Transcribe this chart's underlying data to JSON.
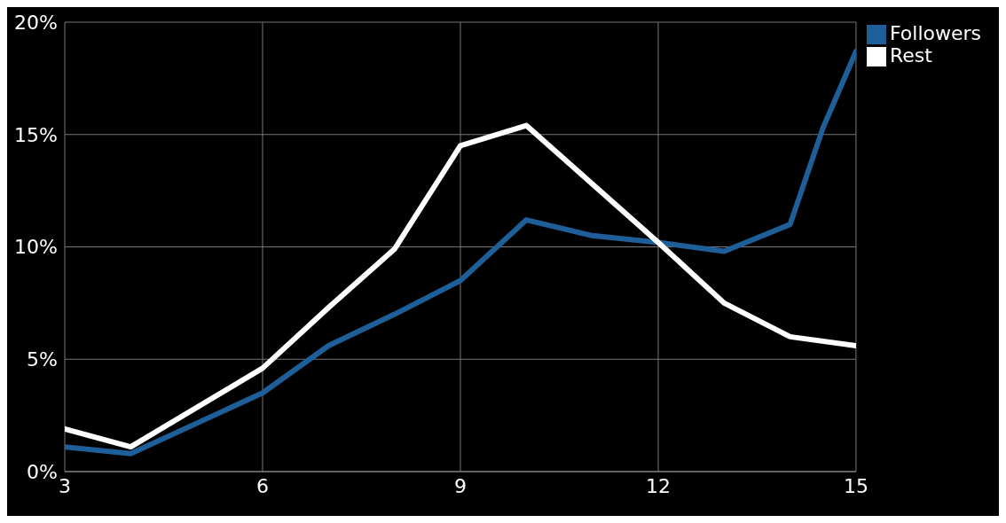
{
  "chart_data": {
    "type": "line",
    "series": [
      {
        "name": "Followers",
        "color": "#1f5f99",
        "x": [
          3,
          4,
          6,
          7,
          8,
          9,
          10,
          11,
          12,
          13,
          14,
          14.5,
          15
        ],
        "values": [
          1.1,
          0.8,
          3.5,
          5.6,
          7.0,
          8.5,
          11.2,
          10.5,
          10.2,
          9.8,
          11.0,
          15.3,
          18.7
        ]
      },
      {
        "name": "Rest",
        "color": "#ffffff",
        "x": [
          3,
          4,
          6,
          7,
          8,
          9,
          10,
          11,
          12,
          13,
          14,
          15
        ],
        "values": [
          1.9,
          1.1,
          4.6,
          7.3,
          9.9,
          14.5,
          15.4,
          12.8,
          10.2,
          7.5,
          6.0,
          5.6
        ]
      }
    ],
    "xlim": [
      3,
      15
    ],
    "xticks": [
      3,
      6,
      9,
      12,
      15
    ],
    "ylim": [
      0,
      20
    ],
    "yticks": [
      {
        "value": 0,
        "label": "0%"
      },
      {
        "value": 5,
        "label": "5%"
      },
      {
        "value": 10,
        "label": "10%"
      },
      {
        "value": 15,
        "label": "15%"
      },
      {
        "value": 20,
        "label": "20%"
      }
    ],
    "grid": true,
    "legend": "top right",
    "marker": "none",
    "line_style": "solid"
  }
}
